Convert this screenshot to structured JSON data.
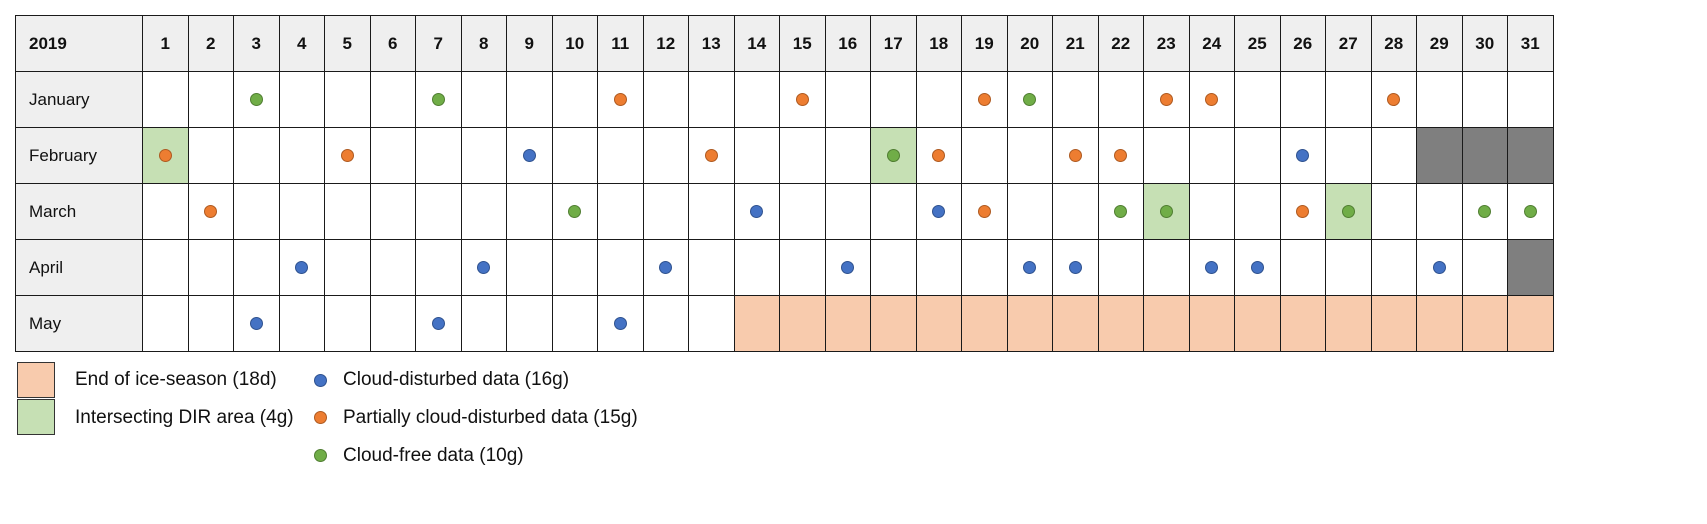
{
  "chart_data": {
    "type": "table",
    "year": "2019",
    "days": [
      "1",
      "2",
      "3",
      "4",
      "5",
      "6",
      "7",
      "8",
      "9",
      "10",
      "11",
      "12",
      "13",
      "14",
      "15",
      "16",
      "17",
      "18",
      "19",
      "20",
      "21",
      "22",
      "23",
      "24",
      "25",
      "26",
      "27",
      "28",
      "29",
      "30",
      "31"
    ],
    "months": [
      {
        "name": "January",
        "obs": [
          {
            "d": 3,
            "c": "green"
          },
          {
            "d": 7,
            "c": "green"
          },
          {
            "d": 11,
            "c": "orange"
          },
          {
            "d": 15,
            "c": "orange"
          },
          {
            "d": 19,
            "c": "orange"
          },
          {
            "d": 20,
            "c": "green"
          },
          {
            "d": 23,
            "c": "orange"
          },
          {
            "d": 24,
            "c": "orange"
          },
          {
            "d": 28,
            "c": "orange"
          }
        ],
        "green_days": [],
        "pink_days": [],
        "grey_days": []
      },
      {
        "name": "February",
        "obs": [
          {
            "d": 1,
            "c": "orange"
          },
          {
            "d": 5,
            "c": "orange"
          },
          {
            "d": 9,
            "c": "blue"
          },
          {
            "d": 13,
            "c": "orange"
          },
          {
            "d": 17,
            "c": "green"
          },
          {
            "d": 18,
            "c": "orange"
          },
          {
            "d": 21,
            "c": "orange"
          },
          {
            "d": 22,
            "c": "orange"
          },
          {
            "d": 26,
            "c": "blue"
          }
        ],
        "green_days": [
          1,
          17
        ],
        "pink_days": [],
        "grey_days": [
          29,
          30,
          31
        ]
      },
      {
        "name": "March",
        "obs": [
          {
            "d": 2,
            "c": "orange"
          },
          {
            "d": 10,
            "c": "green"
          },
          {
            "d": 14,
            "c": "blue"
          },
          {
            "d": 18,
            "c": "blue"
          },
          {
            "d": 19,
            "c": "orange"
          },
          {
            "d": 22,
            "c": "green"
          },
          {
            "d": 23,
            "c": "green"
          },
          {
            "d": 26,
            "c": "orange"
          },
          {
            "d": 27,
            "c": "green"
          },
          {
            "d": 30,
            "c": "green"
          },
          {
            "d": 31,
            "c": "green"
          }
        ],
        "green_days": [
          23,
          27
        ],
        "pink_days": [],
        "grey_days": []
      },
      {
        "name": "April",
        "obs": [
          {
            "d": 4,
            "c": "blue"
          },
          {
            "d": 8,
            "c": "blue"
          },
          {
            "d": 12,
            "c": "blue"
          },
          {
            "d": 16,
            "c": "blue"
          },
          {
            "d": 20,
            "c": "blue"
          },
          {
            "d": 21,
            "c": "blue"
          },
          {
            "d": 24,
            "c": "blue"
          },
          {
            "d": 25,
            "c": "blue"
          },
          {
            "d": 29,
            "c": "blue"
          }
        ],
        "green_days": [],
        "pink_days": [],
        "grey_days": [
          31
        ]
      },
      {
        "name": "May",
        "obs": [
          {
            "d": 3,
            "c": "blue"
          },
          {
            "d": 7,
            "c": "blue"
          },
          {
            "d": 11,
            "c": "blue"
          }
        ],
        "green_days": [],
        "pink_days": [
          14,
          15,
          16,
          17,
          18,
          19,
          20,
          21,
          22,
          23,
          24,
          25,
          26,
          27,
          28,
          29,
          30,
          31
        ],
        "grey_days": []
      }
    ],
    "legend": {
      "pink_label": "End of ice-season (18d)",
      "green_label": "Intersecting DIR area (4g)",
      "blue_label": "Cloud-disturbed data (16g)",
      "orange_label": "Partially cloud-disturbed data (15g)",
      "greendot_label": "Cloud-free data (10g)"
    },
    "colors": {
      "blue": "#4472c4",
      "blue_edge": "#2f528f",
      "orange": "#ed7d31",
      "orange_edge": "#ae5a21",
      "green": "#70ad47",
      "green_edge": "#507e32",
      "pink": "#f8cbad",
      "lightgreen": "#c6e0b4",
      "grey": "#7f7f7f"
    }
  }
}
